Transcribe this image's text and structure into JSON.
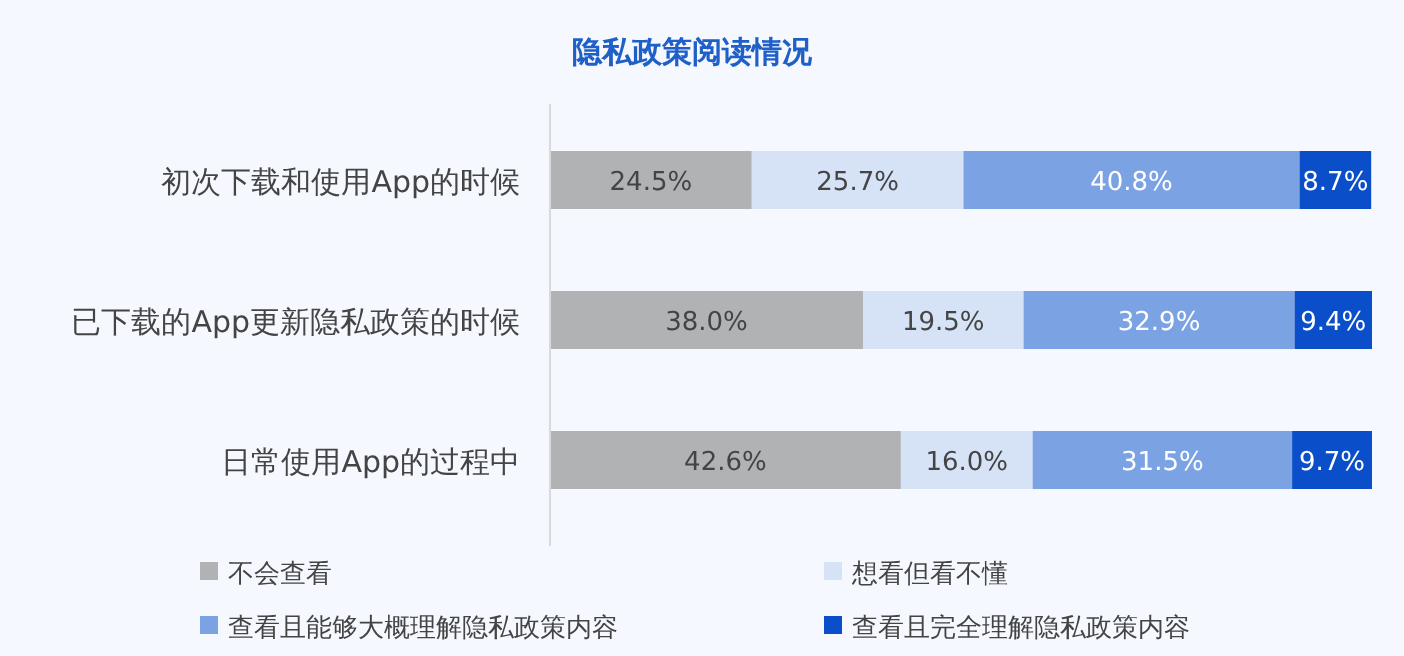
{
  "chart_data": {
    "type": "bar",
    "title": "隐私政策阅读情况",
    "orientation": "horizontal",
    "stacked": true,
    "legend": "bottom",
    "categories": [
      "初次下载和使用App的时候",
      "已下载的App更新隐私政策的时候",
      "日常使用App的过程中"
    ],
    "series": [
      {
        "name": "不会查看",
        "color": "#b1b2b4",
        "values": [
          24.5,
          38.0,
          42.6
        ],
        "value_labels": [
          "24.5%",
          "38.0%",
          "42.6%"
        ]
      },
      {
        "name": "想看但看不懂",
        "color": "#d6e3f7",
        "values": [
          25.7,
          19.5,
          16.0
        ],
        "value_labels": [
          "25.7%",
          "19.5%",
          "16.0%"
        ]
      },
      {
        "name": "查看且能够大概理解隐私政策内容",
        "color": "#7ba3e4",
        "values": [
          40.8,
          32.9,
          31.5
        ],
        "value_labels": [
          "40.8%",
          "32.9%",
          "31.5%"
        ]
      },
      {
        "name": "查看且完全理解隐私政策内容",
        "color": "#0b4ec9",
        "values": [
          8.7,
          9.4,
          9.7
        ],
        "value_labels": [
          "8.7%",
          "9.4%",
          "9.7%"
        ]
      }
    ]
  }
}
